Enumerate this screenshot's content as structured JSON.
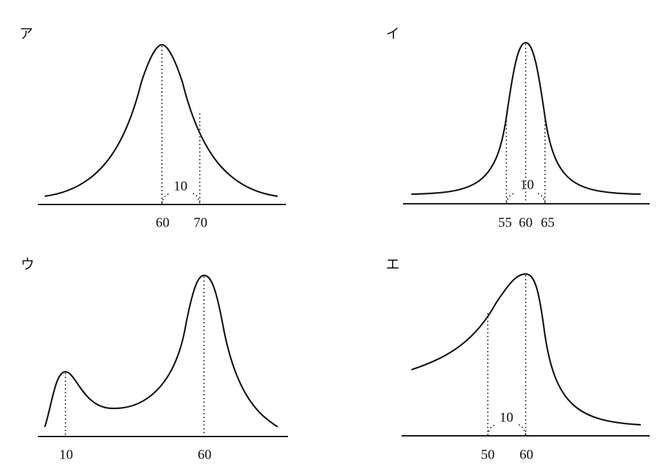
{
  "panels": [
    {
      "label": "ア",
      "ticks": [
        60,
        70
      ],
      "annotation": 10
    },
    {
      "label": "イ",
      "ticks": [
        55,
        60,
        65
      ],
      "annotation": 10
    },
    {
      "label": "ウ",
      "ticks": [
        10,
        60
      ]
    },
    {
      "label": "エ",
      "ticks": [
        50,
        60
      ],
      "annotation": 10
    }
  ]
}
